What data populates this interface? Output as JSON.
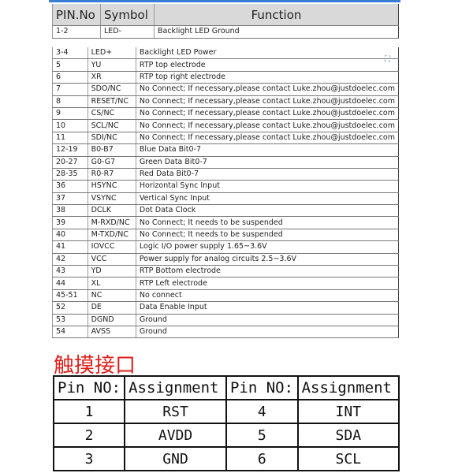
{
  "pin_table": {
    "headers": [
      "PIN.No",
      "Symbol",
      "Function"
    ],
    "rows": [
      [
        "1-2",
        "LED-",
        "Backlight LED Ground"
      ],
      [
        "3-4",
        "LED+",
        "Backlight LED Power"
      ],
      [
        "5",
        "YU",
        "RTP top electrode"
      ],
      [
        "6",
        "XR",
        "RTP top right electrode"
      ],
      [
        "7",
        "SDO/NC",
        "No Connect; If necessary,please contact Luke.zhou@justdoelec.com"
      ],
      [
        "8",
        "RESET/NC",
        "No Connect; If necessary,please contact Luke.zhou@justdoelec.com"
      ],
      [
        "9",
        "CS/NC",
        "No Connect; If necessary,please contact Luke.zhou@justdoelec.com"
      ],
      [
        "10",
        "SCL/NC",
        "No Connect; If necessary,please contact Luke.zhou@justdoelec.com"
      ],
      [
        "11",
        "SDI/NC",
        "No Connect; If necessary,please contact Luke.zhou@justdoelec.com"
      ],
      [
        "12-19",
        "B0-B7",
        "Blue Data Bit0-7"
      ],
      [
        "20-27",
        "G0-G7",
        "Green Data Bit0-7"
      ],
      [
        "28-35",
        "R0-R7",
        "Red Data Bit0-7"
      ],
      [
        "36",
        "HSYNC",
        "Horizontal Sync Input"
      ],
      [
        "37",
        "VSYNC",
        "Vertical Sync Input"
      ],
      [
        "38",
        "DCLK",
        "Dot Data Clock"
      ],
      [
        "39",
        "M-RXD/NC",
        "No Connect; It needs to be suspended"
      ],
      [
        "40",
        "M-TXD/NC",
        "No Connect; It needs to be suspended"
      ],
      [
        "41",
        "IOVCC",
        "Logic I/O power supply   1.65~3.6V"
      ],
      [
        "42",
        "VCC",
        "Power supply for analog circuits   2.5~3.6V"
      ],
      [
        "43",
        "YD",
        "RTP Bottom electrode"
      ],
      [
        "44",
        "XL",
        "RTP Left electrode"
      ],
      [
        "45-51",
        "NC",
        "No connect"
      ],
      [
        "52",
        "DE",
        "Data Enable Input"
      ],
      [
        "53",
        "DGND",
        "Ground"
      ],
      [
        "54",
        "AVSS",
        "Ground"
      ]
    ]
  },
  "touch_title": "触摸接口",
  "touch_table": {
    "headers": [
      "Pin NO:",
      "Assignment",
      "Pin NO:",
      "Assignment"
    ],
    "rows": [
      [
        "1",
        "RST",
        "4",
        "INT"
      ],
      [
        "2",
        "AVDD",
        "5",
        "SDA"
      ],
      [
        "3",
        "GND",
        "6",
        "SCL"
      ]
    ]
  }
}
